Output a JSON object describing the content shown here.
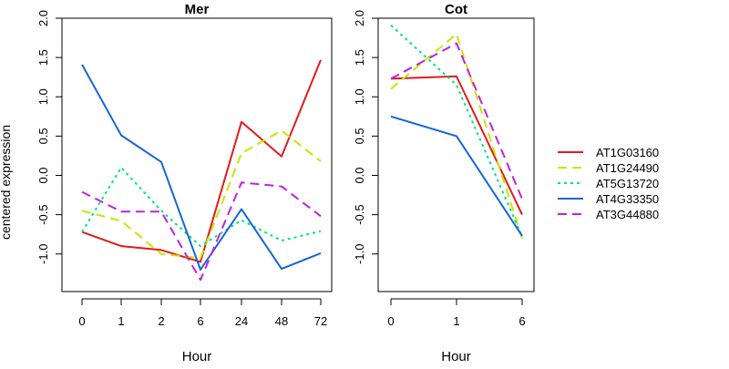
{
  "ylabel": "centered expression",
  "chart_data": [
    {
      "type": "line",
      "title": "Mer",
      "xlabel": "Hour",
      "ylabel": "centered expression",
      "categories": [
        "0",
        "1",
        "2",
        "6",
        "24",
        "48",
        "72"
      ],
      "ylim": [
        -1.5,
        2.0
      ],
      "yticks": [
        "-1.0",
        "-0.5",
        "0.0",
        "0.5",
        "1.0",
        "1.5",
        "2.0"
      ],
      "series": [
        {
          "name": "AT1G03160",
          "color": "#e31a1c",
          "dash": "solid",
          "values": [
            -0.72,
            -0.9,
            -0.95,
            -1.1,
            0.68,
            0.24,
            1.47
          ]
        },
        {
          "name": "AT1G24490",
          "color": "#c8e600",
          "dash": "dashed",
          "values": [
            -0.45,
            -0.58,
            -1.0,
            -1.05,
            0.28,
            0.57,
            0.18
          ]
        },
        {
          "name": "AT5G13720",
          "color": "#00e676",
          "dash": "dotted",
          "values": [
            -0.72,
            0.1,
            -0.45,
            -0.9,
            -0.57,
            -0.83,
            -0.71
          ]
        },
        {
          "name": "AT4G33350",
          "color": "#1565d8",
          "dash": "solid",
          "values": [
            1.41,
            0.51,
            0.17,
            -1.2,
            -0.43,
            -1.19,
            -0.99
          ]
        },
        {
          "name": "AT3G44880",
          "color": "#c020e0",
          "dash": "dashed",
          "values": [
            -0.21,
            -0.46,
            -0.46,
            -1.33,
            -0.09,
            -0.14,
            -0.52
          ]
        }
      ]
    },
    {
      "type": "line",
      "title": "Cot",
      "xlabel": "Hour",
      "categories": [
        "0",
        "1",
        "6"
      ],
      "ylim": [
        -1.5,
        2.0
      ],
      "yticks": [
        "-1.0",
        "-0.5",
        "0.0",
        "0.5",
        "1.0",
        "1.5",
        "2.0"
      ],
      "series": [
        {
          "name": "AT1G03160",
          "color": "#e31a1c",
          "dash": "solid",
          "values": [
            1.23,
            1.26,
            -0.5
          ]
        },
        {
          "name": "AT1G24490",
          "color": "#c8e600",
          "dash": "dashed",
          "values": [
            1.1,
            1.8,
            -0.8
          ]
        },
        {
          "name": "AT5G13720",
          "color": "#00e676",
          "dash": "dotted",
          "values": [
            1.91,
            1.15,
            -0.78
          ]
        },
        {
          "name": "AT4G33350",
          "color": "#1565d8",
          "dash": "solid",
          "values": [
            0.75,
            0.5,
            -0.77
          ]
        },
        {
          "name": "AT3G44880",
          "color": "#c020e0",
          "dash": "dashed",
          "values": [
            1.23,
            1.68,
            -0.3
          ]
        }
      ]
    }
  ],
  "legend": {
    "placement": "right",
    "entries": [
      {
        "label": "AT1G03160",
        "color": "#e31a1c",
        "dash": "solid"
      },
      {
        "label": "AT1G24490",
        "color": "#c8e600",
        "dash": "dashed"
      },
      {
        "label": "AT5G13720",
        "color": "#00e676",
        "dash": "dotted"
      },
      {
        "label": "AT4G33350",
        "color": "#1565d8",
        "dash": "solid"
      },
      {
        "label": "AT3G44880",
        "color": "#c020e0",
        "dash": "dashed"
      }
    ]
  }
}
